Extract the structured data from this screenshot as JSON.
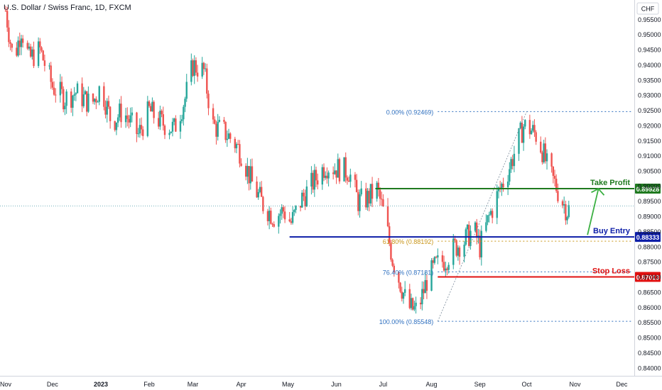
{
  "header": {
    "title": "U.S. Dollar / Swiss Franc, 1D, FXCM"
  },
  "chart_data": {
    "type": "candlestick",
    "currency_label": "CHF",
    "x_axis": {
      "labels": [
        {
          "text": "Nov",
          "day": 0
        },
        {
          "text": "Dec",
          "day": 30
        },
        {
          "text": "2023",
          "day": 61
        },
        {
          "text": "Feb",
          "day": 92
        },
        {
          "text": "Mar",
          "day": 120
        },
        {
          "text": "Apr",
          "day": 151
        },
        {
          "text": "May",
          "day": 181
        },
        {
          "text": "Jun",
          "day": 212
        },
        {
          "text": "Jul",
          "day": 242
        },
        {
          "text": "Aug",
          "day": 273
        },
        {
          "text": "Sep",
          "day": 304
        },
        {
          "text": "Oct",
          "day": 334
        },
        {
          "text": "Nov",
          "day": 365
        },
        {
          "text": "Dec",
          "day": 395
        }
      ],
      "range_days": [
        0,
        403
      ]
    },
    "y_axis": {
      "ylim": [
        0.8375,
        0.9615
      ],
      "ticks": [
        "0.95500",
        "0.95000",
        "0.94500",
        "0.94000",
        "0.93500",
        "0.93000",
        "0.92500",
        "0.92000",
        "0.91500",
        "0.91000",
        "0.90500",
        "0.90000",
        "0.89500",
        "0.89000",
        "0.88500",
        "0.88000",
        "0.87500",
        "0.87000",
        "0.86500",
        "0.86000",
        "0.85500",
        "0.85000",
        "0.84500",
        "0.84000"
      ]
    },
    "colors": {
      "up": "#26a69a",
      "down": "#ef5350",
      "take_profit": "#1f7a1f",
      "buy_entry": "#0d1ea8",
      "stop_loss": "#e01010",
      "fib": "#2e6fbf",
      "fib_618": "#c9961a",
      "arrow": "#3cb043"
    },
    "anchors": [
      {
        "day": 0,
        "price": 0.958
      },
      {
        "day": 5,
        "price": 0.941
      },
      {
        "day": 10,
        "price": 0.952
      },
      {
        "day": 15,
        "price": 0.942
      },
      {
        "day": 22,
        "price": 0.945
      },
      {
        "day": 30,
        "price": 0.933
      },
      {
        "day": 38,
        "price": 0.929
      },
      {
        "day": 45,
        "price": 0.931
      },
      {
        "day": 55,
        "price": 0.927
      },
      {
        "day": 61,
        "price": 0.933
      },
      {
        "day": 68,
        "price": 0.921
      },
      {
        "day": 75,
        "price": 0.925
      },
      {
        "day": 85,
        "price": 0.917
      },
      {
        "day": 92,
        "price": 0.925
      },
      {
        "day": 100,
        "price": 0.921
      },
      {
        "day": 108,
        "price": 0.919
      },
      {
        "day": 115,
        "price": 0.929
      },
      {
        "day": 120,
        "price": 0.94
      },
      {
        "day": 127,
        "price": 0.938
      },
      {
        "day": 133,
        "price": 0.92
      },
      {
        "day": 140,
        "price": 0.918
      },
      {
        "day": 146,
        "price": 0.915
      },
      {
        "day": 151,
        "price": 0.911
      },
      {
        "day": 158,
        "price": 0.901
      },
      {
        "day": 165,
        "price": 0.894
      },
      {
        "day": 172,
        "price": 0.89
      },
      {
        "day": 178,
        "price": 0.892
      },
      {
        "day": 183,
        "price": 0.888
      },
      {
        "day": 190,
        "price": 0.896
      },
      {
        "day": 198,
        "price": 0.902
      },
      {
        "day": 205,
        "price": 0.907
      },
      {
        "day": 212,
        "price": 0.906
      },
      {
        "day": 220,
        "price": 0.905
      },
      {
        "day": 226,
        "price": 0.895
      },
      {
        "day": 232,
        "price": 0.896
      },
      {
        "day": 238,
        "price": 0.899
      },
      {
        "day": 243,
        "price": 0.89
      },
      {
        "day": 248,
        "price": 0.876
      },
      {
        "day": 253,
        "price": 0.868
      },
      {
        "day": 258,
        "price": 0.86
      },
      {
        "day": 264,
        "price": 0.859
      },
      {
        "day": 270,
        "price": 0.869
      },
      {
        "day": 276,
        "price": 0.874
      },
      {
        "day": 282,
        "price": 0.876
      },
      {
        "day": 288,
        "price": 0.88
      },
      {
        "day": 294,
        "price": 0.882
      },
      {
        "day": 300,
        "price": 0.886
      },
      {
        "day": 304,
        "price": 0.88
      },
      {
        "day": 310,
        "price": 0.89
      },
      {
        "day": 316,
        "price": 0.898
      },
      {
        "day": 322,
        "price": 0.905
      },
      {
        "day": 328,
        "price": 0.914
      },
      {
        "day": 332,
        "price": 0.92
      },
      {
        "day": 336,
        "price": 0.919
      },
      {
        "day": 340,
        "price": 0.917
      },
      {
        "day": 344,
        "price": 0.912
      },
      {
        "day": 348,
        "price": 0.905
      },
      {
        "day": 352,
        "price": 0.901
      },
      {
        "day": 356,
        "price": 0.896
      },
      {
        "day": 360,
        "price": 0.892
      },
      {
        "day": 363,
        "price": 0.8935
      }
    ],
    "last_price_line": 0.8935,
    "levels": [
      {
        "name": "Take Profit",
        "price": 0.89928,
        "label": "0.89928",
        "color_key": "take_profit",
        "from_day": 237
      },
      {
        "name": "Buy Entry",
        "price": 0.88333,
        "label": "0.88333",
        "color_key": "buy_entry",
        "from_day": 182
      },
      {
        "name": "Stop Loss",
        "price": 0.87013,
        "label": "0.87013",
        "color_key": "stop_loss",
        "from_day": 277
      }
    ],
    "fibonacci": [
      {
        "text": "0.00% (0.92469)",
        "price": 0.92469
      },
      {
        "text": "61.80% (0.88192)",
        "price": 0.88192
      },
      {
        "text": "76.40% (0.87181)",
        "price": 0.87181
      },
      {
        "text": "100.00% (0.85548)",
        "price": 0.85548
      }
    ],
    "fib_range_days": [
      277,
      430
    ],
    "fib_trend": {
      "from_day": 277,
      "from_price": 0.85548,
      "to_day": 334,
      "to_price": 0.92469
    },
    "arrow": {
      "from_day": 373,
      "from_price": 0.884,
      "to_day": 380,
      "to_price": 0.8992
    }
  }
}
